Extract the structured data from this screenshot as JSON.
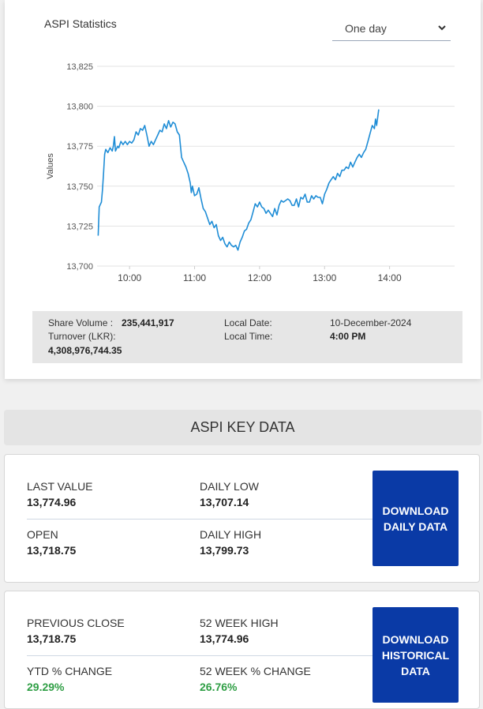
{
  "stats": {
    "title": "ASPI Statistics",
    "range_selected": "One day"
  },
  "chart_data": {
    "type": "line",
    "ylabel": "Values",
    "ylim": [
      13700,
      13825
    ],
    "y_ticks": [
      "13,825",
      "13,800",
      "13,775",
      "13,750",
      "13,725",
      "13,700"
    ],
    "x_ticks": [
      "10:00",
      "11:00",
      "12:00",
      "13:00",
      "14:00"
    ],
    "x_range_minutes": [
      570,
      900
    ],
    "grid": true,
    "line_color": "#1f8dd6",
    "series": [
      {
        "points": [
          [
            571,
            13719
          ],
          [
            572,
            13737
          ],
          [
            574,
            13740
          ],
          [
            575,
            13748
          ],
          [
            576,
            13758
          ],
          [
            577,
            13770
          ],
          [
            578,
            13773
          ],
          [
            580,
            13771
          ],
          [
            582,
            13774
          ],
          [
            584,
            13772
          ],
          [
            585,
            13775
          ],
          [
            586,
            13781
          ],
          [
            587,
            13772
          ],
          [
            589,
            13775
          ],
          [
            590,
            13774
          ],
          [
            592,
            13778
          ],
          [
            594,
            13776
          ],
          [
            596,
            13778
          ],
          [
            598,
            13776
          ],
          [
            600,
            13778
          ],
          [
            602,
            13777
          ],
          [
            604,
            13779
          ],
          [
            606,
            13784
          ],
          [
            608,
            13782
          ],
          [
            610,
            13786
          ],
          [
            612,
            13785
          ],
          [
            614,
            13788
          ],
          [
            616,
            13782
          ],
          [
            618,
            13775
          ],
          [
            620,
            13778
          ],
          [
            622,
            13776
          ],
          [
            624,
            13779
          ],
          [
            626,
            13782
          ],
          [
            628,
            13785
          ],
          [
            630,
            13784
          ],
          [
            632,
            13789
          ],
          [
            634,
            13786
          ],
          [
            636,
            13791
          ],
          [
            638,
            13787
          ],
          [
            640,
            13790
          ],
          [
            642,
            13789
          ],
          [
            644,
            13784
          ],
          [
            646,
            13782
          ],
          [
            648,
            13768
          ],
          [
            650,
            13765
          ],
          [
            652,
            13762
          ],
          [
            654,
            13758
          ],
          [
            656,
            13752
          ],
          [
            657,
            13746
          ],
          [
            658,
            13750
          ],
          [
            660,
            13744
          ],
          [
            662,
            13745
          ],
          [
            664,
            13749
          ],
          [
            666,
            13742
          ],
          [
            668,
            13736
          ],
          [
            670,
            13734
          ],
          [
            672,
            13730
          ],
          [
            674,
            13726
          ],
          [
            676,
            13728
          ],
          [
            678,
            13724
          ],
          [
            680,
            13726
          ],
          [
            682,
            13719
          ],
          [
            684,
            13716
          ],
          [
            686,
            13718
          ],
          [
            688,
            13714
          ],
          [
            690,
            13712
          ],
          [
            692,
            13715
          ],
          [
            694,
            13713
          ],
          [
            696,
            13712
          ],
          [
            698,
            13713
          ],
          [
            700,
            13710
          ],
          [
            702,
            13715
          ],
          [
            704,
            13718
          ],
          [
            706,
            13722
          ],
          [
            708,
            13723
          ],
          [
            710,
            13727
          ],
          [
            712,
            13729
          ],
          [
            714,
            13734
          ],
          [
            716,
            13739
          ],
          [
            718,
            13737
          ],
          [
            720,
            13740
          ],
          [
            722,
            13737
          ],
          [
            724,
            13736
          ],
          [
            726,
            13733
          ],
          [
            728,
            13735
          ],
          [
            730,
            13733
          ],
          [
            732,
            13731
          ],
          [
            734,
            13736
          ],
          [
            736,
            13732
          ],
          [
            738,
            13738
          ],
          [
            740,
            13741
          ],
          [
            742,
            13740
          ],
          [
            744,
            13741
          ],
          [
            746,
            13742
          ],
          [
            748,
            13741
          ],
          [
            750,
            13738
          ],
          [
            752,
            13738
          ],
          [
            754,
            13742
          ],
          [
            756,
            13737
          ],
          [
            758,
            13743
          ],
          [
            760,
            13742
          ],
          [
            762,
            13745
          ],
          [
            764,
            13740
          ],
          [
            766,
            13740
          ],
          [
            768,
            13744
          ],
          [
            770,
            13742
          ],
          [
            772,
            13744
          ],
          [
            774,
            13743
          ],
          [
            776,
            13743
          ],
          [
            778,
            13739
          ],
          [
            780,
            13745
          ],
          [
            782,
            13748
          ],
          [
            784,
            13752
          ],
          [
            786,
            13754
          ],
          [
            788,
            13756
          ],
          [
            790,
            13754
          ],
          [
            792,
            13758
          ],
          [
            794,
            13756
          ],
          [
            796,
            13760
          ],
          [
            798,
            13760
          ],
          [
            800,
            13762
          ],
          [
            802,
            13761
          ],
          [
            804,
            13765
          ],
          [
            806,
            13762
          ],
          [
            808,
            13765
          ],
          [
            810,
            13768
          ],
          [
            812,
            13770
          ],
          [
            814,
            13768
          ],
          [
            816,
            13771
          ],
          [
            818,
            13773
          ],
          [
            820,
            13778
          ],
          [
            822,
            13783
          ],
          [
            824,
            13788
          ],
          [
            826,
            13786
          ],
          [
            827,
            13792
          ],
          [
            828,
            13788
          ],
          [
            830,
            13798
          ]
        ]
      }
    ]
  },
  "info": {
    "share_volume_label": "Share Volume :",
    "share_volume_value": "235,441,917",
    "turnover_label": "Turnover (LKR):",
    "turnover_value": "4,308,976,744.35",
    "local_date_label": "Local Date:",
    "local_date_value": "10-December-2024",
    "local_time_label": "Local Time:",
    "local_time_value": "4:00 PM"
  },
  "key_data": {
    "heading": "ASPI KEY DATA",
    "card1": {
      "last_value_label": "LAST VALUE",
      "last_value": "13,774.96",
      "daily_low_label": "DAILY LOW",
      "daily_low": "13,707.14",
      "open_label": "OPEN",
      "open": "13,718.75",
      "daily_high_label": "DAILY HIGH",
      "daily_high": "13,799.73",
      "button": "DOWNLOAD DAILY DATA"
    },
    "card2": {
      "prev_close_label": "PREVIOUS CLOSE",
      "prev_close": "13,718.75",
      "week52_high_label": "52 WEEK HIGH",
      "week52_high": "13,774.96",
      "ytd_label": "YTD % CHANGE",
      "ytd": "29.29%",
      "week52_change_label": "52 WEEK % CHANGE",
      "week52_change": "26.76%",
      "button": "DOWNLOAD HISTORICAL DATA"
    }
  },
  "colors": {
    "button_bg": "#0a3aa6",
    "positive": "#2e9e44"
  }
}
